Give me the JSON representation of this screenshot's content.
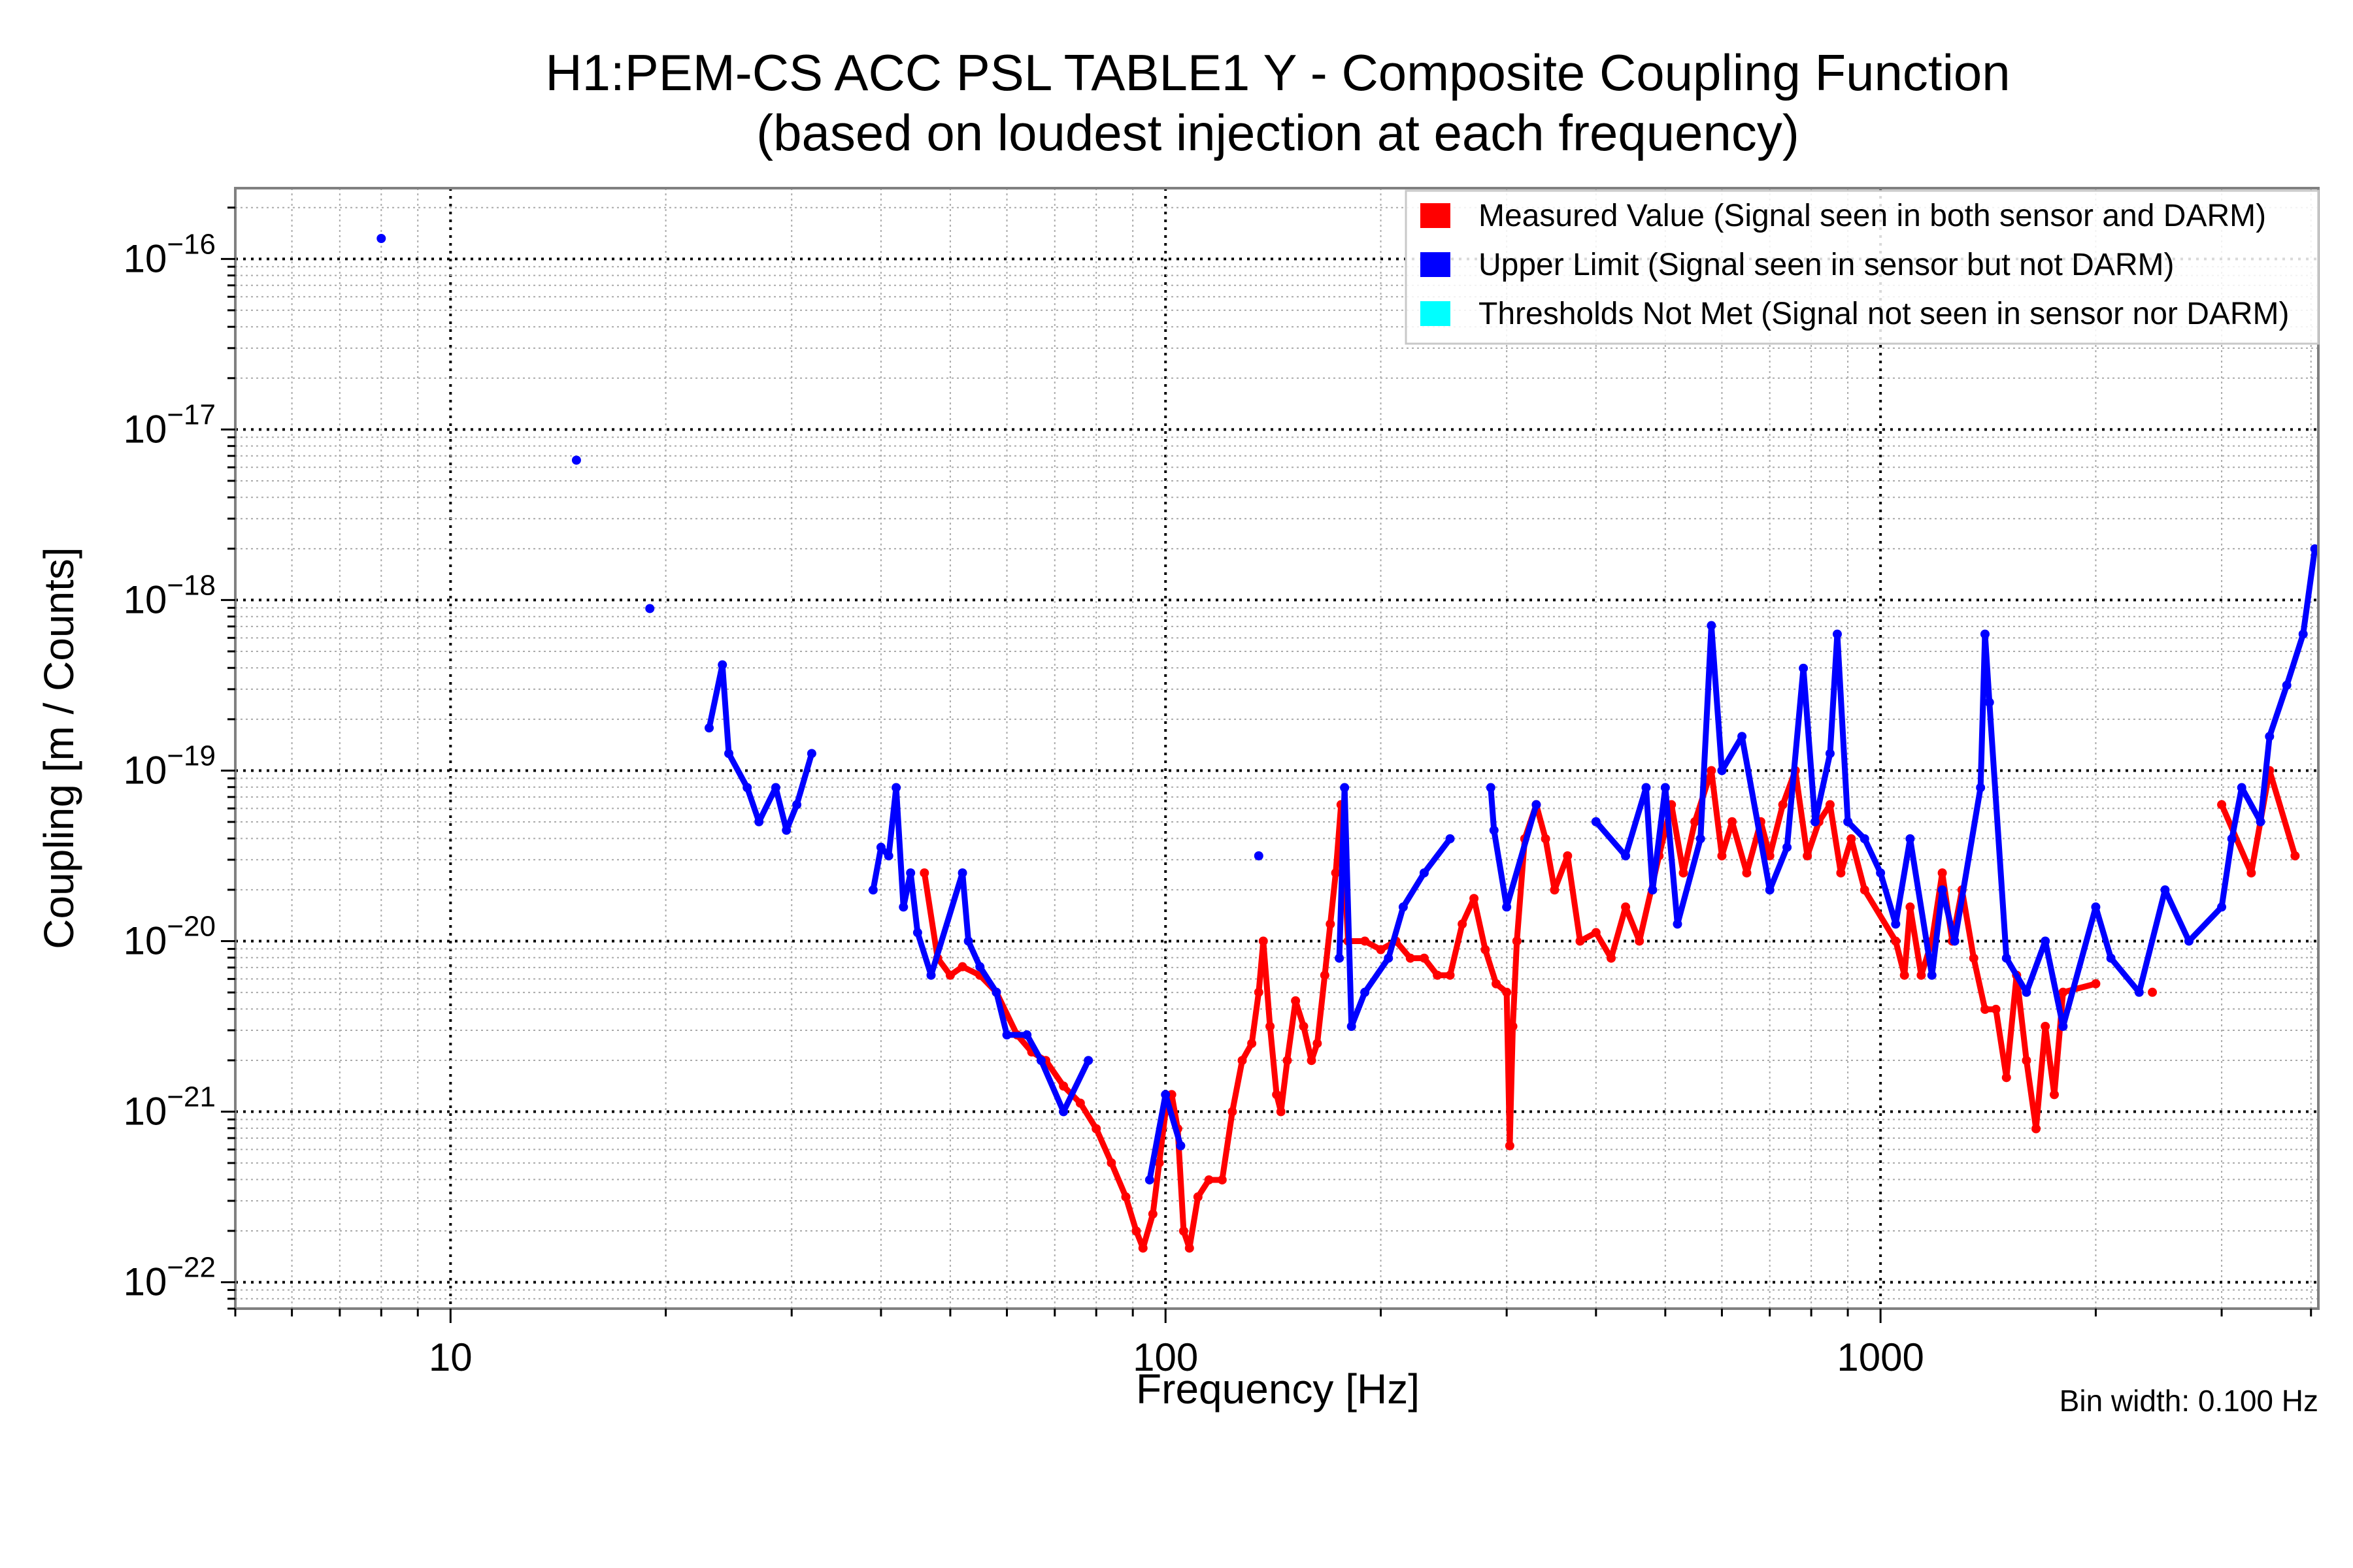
{
  "chart_data": {
    "type": "scatter",
    "title": "H1:PEM-CS ACC PSL TABLE1 Y - Composite Coupling Function",
    "subtitle": "(based on loudest injection at each frequency)",
    "xlabel": "Frequency [Hz]",
    "ylabel": "Coupling [m / Counts]",
    "xscale": "log",
    "yscale": "log",
    "xlim": [
      5,
      4096
    ],
    "ylim": [
      7e-23,
      2.6e-16
    ],
    "x_tick_values": [
      10,
      100,
      1000
    ],
    "x_tick_labels": [
      "10",
      "100",
      "1000"
    ],
    "y_tick_values": [
      1e-16,
      1e-17,
      1e-18,
      1e-19,
      1e-20,
      1e-21,
      1e-22
    ],
    "y_tick_labels": [
      "10^−16",
      "10^−17",
      "10^−18",
      "10^−19",
      "10^−20",
      "10^−21",
      "10^−22"
    ],
    "grid": true,
    "legend_position": "top-right",
    "annotation": "Bin width: 0.100 Hz",
    "series": [
      {
        "name": "Measured Value (Signal seen in both sensor and DARM)",
        "color": "#ff0000",
        "points_log10": [
          [
            46,
            -19.6
          ],
          [
            48,
            -20.1
          ],
          [
            50,
            -20.2
          ],
          [
            52,
            -20.15
          ],
          [
            55,
            -20.2
          ],
          [
            58,
            -20.3
          ],
          [
            62,
            -20.55
          ],
          [
            65,
            -20.65
          ],
          [
            68,
            -20.7
          ],
          [
            72,
            -20.85
          ],
          [
            76,
            -20.95
          ],
          [
            80,
            -21.1
          ],
          [
            84,
            -21.3
          ],
          [
            88,
            -21.5
          ],
          [
            91,
            -21.7
          ],
          [
            93,
            -21.8
          ],
          [
            96,
            -21.6
          ],
          [
            98,
            -21.3
          ],
          [
            100,
            -21.0
          ],
          [
            102,
            -20.9
          ],
          [
            104,
            -21.1
          ],
          [
            106,
            -21.7
          ],
          [
            108,
            -21.8
          ],
          [
            111,
            -21.5
          ],
          [
            115,
            -21.4
          ],
          [
            120,
            -21.4
          ],
          [
            124,
            -21.0
          ],
          [
            128,
            -20.7
          ],
          [
            132,
            -20.6
          ],
          [
            135,
            -20.3
          ],
          [
            137,
            -20.0
          ],
          [
            140,
            -20.5
          ],
          [
            143,
            -20.9
          ],
          [
            145,
            -21.0
          ],
          [
            148,
            -20.7
          ],
          [
            152,
            -20.35
          ],
          [
            156,
            -20.5
          ],
          [
            160,
            -20.7
          ],
          [
            163,
            -20.6
          ],
          [
            167,
            -20.2
          ],
          [
            170,
            -19.9
          ],
          [
            173,
            -19.6
          ],
          [
            176,
            -19.2
          ],
          [
            180,
            -20.0
          ],
          [
            190,
            -20.0
          ],
          [
            200,
            -20.05
          ],
          [
            210,
            -20.0
          ],
          [
            220,
            -20.1
          ],
          [
            230,
            -20.1
          ],
          [
            240,
            -20.2
          ],
          [
            250,
            -20.2
          ],
          [
            260,
            -19.9
          ],
          [
            270,
            -19.75
          ],
          [
            280,
            -20.05
          ],
          [
            290,
            -20.25
          ],
          [
            300,
            -20.3
          ],
          [
            303,
            -21.2
          ],
          [
            306,
            -20.5
          ],
          [
            310,
            -20.0
          ],
          [
            318,
            -19.4
          ],
          [
            330,
            -19.2
          ],
          [
            340,
            -19.4
          ],
          [
            350,
            -19.7
          ],
          [
            365,
            -19.5
          ],
          [
            380,
            -20.0
          ],
          [
            400,
            -19.95
          ],
          [
            420,
            -20.1
          ],
          [
            440,
            -19.8
          ],
          [
            460,
            -20.0
          ],
          [
            490,
            -19.5
          ],
          [
            510,
            -19.2
          ],
          [
            530,
            -19.6
          ],
          [
            550,
            -19.3
          ],
          [
            580,
            -19.0
          ],
          [
            600,
            -19.5
          ],
          [
            620,
            -19.3
          ],
          [
            650,
            -19.6
          ],
          [
            680,
            -19.3
          ],
          [
            700,
            -19.5
          ],
          [
            730,
            -19.2
          ],
          [
            760,
            -19.0
          ],
          [
            790,
            -19.5
          ],
          [
            820,
            -19.3
          ],
          [
            850,
            -19.2
          ],
          [
            880,
            -19.6
          ],
          [
            910,
            -19.4
          ],
          [
            950,
            -19.7
          ],
          [
            1050,
            -20.0
          ],
          [
            1080,
            -20.2
          ],
          [
            1100,
            -19.8
          ],
          [
            1140,
            -20.2
          ],
          [
            1180,
            -20.0
          ],
          [
            1220,
            -19.6
          ],
          [
            1260,
            -20.0
          ],
          [
            1300,
            -19.7
          ],
          [
            1350,
            -20.1
          ],
          [
            1400,
            -20.4
          ],
          [
            1450,
            -20.4
          ],
          [
            1500,
            -20.8
          ],
          [
            1550,
            -20.2
          ],
          [
            1600,
            -20.7
          ],
          [
            1650,
            -21.1
          ],
          [
            1700,
            -20.5
          ],
          [
            1750,
            -20.9
          ],
          [
            1800,
            -20.3
          ],
          [
            2000,
            -20.25
          ],
          [
            2400,
            -20.3
          ],
          [
            3000,
            -19.2
          ],
          [
            3300,
            -19.6
          ],
          [
            3500,
            -19.0
          ],
          [
            3800,
            -19.5
          ]
        ]
      },
      {
        "name": "Upper Limit (Signal seen in sensor but not DARM)",
        "color": "#0000ff",
        "points_log10": [
          [
            8,
            -15.88
          ],
          [
            15,
            -17.18
          ],
          [
            19,
            -18.05
          ],
          [
            23,
            -18.75
          ],
          [
            24,
            -18.38
          ],
          [
            24.5,
            -18.9
          ],
          [
            26,
            -19.1
          ],
          [
            27,
            -19.3
          ],
          [
            28.5,
            -19.1
          ],
          [
            29.5,
            -19.35
          ],
          [
            30.5,
            -19.2
          ],
          [
            32,
            -18.9
          ],
          [
            39,
            -19.7
          ],
          [
            40,
            -19.45
          ],
          [
            41,
            -19.5
          ],
          [
            42,
            -19.1
          ],
          [
            43,
            -19.8
          ],
          [
            44,
            -19.6
          ],
          [
            45,
            -19.95
          ],
          [
            47,
            -20.2
          ],
          [
            52,
            -19.6
          ],
          [
            53,
            -20.0
          ],
          [
            55,
            -20.15
          ],
          [
            58,
            -20.3
          ],
          [
            60,
            -20.55
          ],
          [
            64,
            -20.55
          ],
          [
            67,
            -20.7
          ],
          [
            72,
            -21.0
          ],
          [
            78,
            -20.7
          ],
          [
            95,
            -21.4
          ],
          [
            100,
            -20.9
          ],
          [
            105,
            -21.2
          ],
          [
            135,
            -19.5
          ],
          [
            175,
            -20.1
          ],
          [
            178,
            -19.1
          ],
          [
            182,
            -20.5
          ],
          [
            190,
            -20.3
          ],
          [
            205,
            -20.1
          ],
          [
            215,
            -19.8
          ],
          [
            230,
            -19.6
          ],
          [
            250,
            -19.4
          ],
          [
            285,
            -19.1
          ],
          [
            288,
            -19.35
          ],
          [
            300,
            -19.8
          ],
          [
            330,
            -19.2
          ],
          [
            400,
            -19.3
          ],
          [
            440,
            -19.5
          ],
          [
            470,
            -19.1
          ],
          [
            480,
            -19.7
          ],
          [
            500,
            -19.1
          ],
          [
            520,
            -19.9
          ],
          [
            560,
            -19.4
          ],
          [
            580,
            -18.15
          ],
          [
            600,
            -19.0
          ],
          [
            640,
            -18.8
          ],
          [
            700,
            -19.7
          ],
          [
            740,
            -19.45
          ],
          [
            780,
            -18.4
          ],
          [
            810,
            -19.3
          ],
          [
            850,
            -18.9
          ],
          [
            870,
            -18.2
          ],
          [
            900,
            -19.3
          ],
          [
            950,
            -19.4
          ],
          [
            1000,
            -19.6
          ],
          [
            1050,
            -19.9
          ],
          [
            1100,
            -19.4
          ],
          [
            1180,
            -20.2
          ],
          [
            1220,
            -19.7
          ],
          [
            1270,
            -20.0
          ],
          [
            1380,
            -19.1
          ],
          [
            1400,
            -18.2
          ],
          [
            1420,
            -18.6
          ],
          [
            1500,
            -20.1
          ],
          [
            1600,
            -20.3
          ],
          [
            1700,
            -20.0
          ],
          [
            1800,
            -20.5
          ],
          [
            2000,
            -19.8
          ],
          [
            2100,
            -20.1
          ],
          [
            2300,
            -20.3
          ],
          [
            2500,
            -19.7
          ],
          [
            2700,
            -20.0
          ],
          [
            3000,
            -19.8
          ],
          [
            3100,
            -19.4
          ],
          [
            3200,
            -19.1
          ],
          [
            3400,
            -19.3
          ],
          [
            3500,
            -18.8
          ],
          [
            3700,
            -18.5
          ],
          [
            3900,
            -18.2
          ],
          [
            4050,
            -17.7
          ]
        ]
      },
      {
        "name": "Thresholds Not Met (Signal not seen in sensor nor DARM)",
        "color": "#00ffff",
        "points_log10": []
      }
    ]
  }
}
